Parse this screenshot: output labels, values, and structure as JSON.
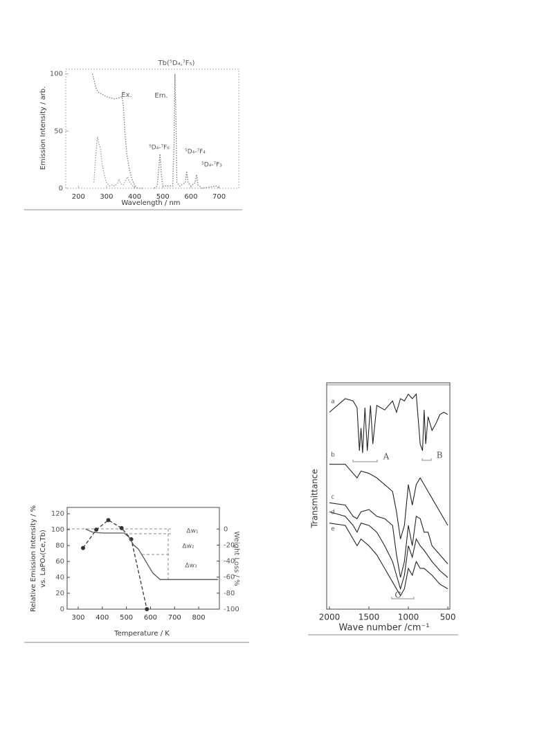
{
  "chart_data": [
    {
      "type": "line",
      "title": "Tb(⁵D₄,⁷F₅)",
      "x_label": "Wavelength / nm",
      "y_label": [
        "Emission Intensity / arb."
      ],
      "xlim": [
        155,
        770
      ],
      "ylim": [
        0,
        104
      ],
      "xticks": [
        200,
        300,
        400,
        500,
        600,
        700
      ],
      "yticks": [
        0,
        50,
        100
      ],
      "annotations": [
        "⁵D₄-⁷F₆",
        "⁵D₄-⁷F₄",
        "⁵D₄-⁷F₃"
      ],
      "series": [
        {
          "name": "Ex.",
          "color": "#777777",
          "line_style": "dotted",
          "x": [
            250,
            255,
            262,
            270,
            285,
            300,
            315,
            330,
            345,
            355,
            360,
            365,
            372,
            380,
            388,
            395,
            402,
            410,
            430
          ],
          "values": [
            100,
            95,
            88,
            84,
            82,
            80,
            79,
            78,
            79,
            80,
            72,
            50,
            30,
            18,
            10,
            5,
            2,
            0,
            0
          ]
        },
        {
          "name": "Em.",
          "color": "#777777",
          "line_style": "dotted",
          "x": [
            470,
            480,
            485,
            490,
            495,
            500,
            535,
            540,
            543,
            547,
            550,
            560,
            580,
            585,
            590,
            600,
            615,
            620,
            625,
            640,
            690,
            700
          ],
          "values": [
            0,
            2,
            15,
            30,
            12,
            2,
            2,
            40,
            100,
            60,
            5,
            2,
            5,
            15,
            5,
            2,
            5,
            12,
            3,
            0,
            2,
            0
          ]
        },
        {
          "color": "#999999",
          "line_style": "dotted",
          "x": [
            255,
            262,
            268,
            272,
            278,
            285,
            292,
            300,
            310,
            320,
            330,
            340,
            345,
            350,
            360,
            370,
            375,
            380,
            390,
            400
          ],
          "values": [
            5,
            30,
            45,
            40,
            35,
            20,
            12,
            5,
            2,
            3,
            2,
            5,
            8,
            4,
            3,
            8,
            10,
            6,
            3,
            0
          ]
        }
      ]
    },
    {
      "type": "line",
      "x_label": "Temperature / K",
      "y_label": [
        "Relative Emission Intensity / %",
        "vs. LaPO₄(Ce,Tb)"
      ],
      "y2_label": "Weight Loss / %",
      "xlim": [
        254,
        886
      ],
      "ylim": [
        0,
        128
      ],
      "y2lim": [
        -100,
        27
      ],
      "xticks": [
        300,
        400,
        500,
        600,
        700,
        800
      ],
      "yticks": [
        0,
        20,
        40,
        60,
        80,
        100,
        120
      ],
      "y2ticks": [
        0,
        -20,
        -40,
        -60,
        -80,
        -100
      ],
      "annotations": [
        "Δw₁",
        "Δw₂",
        "Δw₃"
      ],
      "series": [
        {
          "color": "#333333",
          "line_style": "dashed",
          "marker": "circle",
          "x": [
            320,
            375,
            425,
            480,
            520,
            585
          ],
          "values": [
            77,
            100,
            112,
            102,
            88,
            0
          ]
        },
        {
          "color": "#555555",
          "line_style": "solid",
          "axis": "y2",
          "x": [
            330,
            360,
            400,
            450,
            490,
            510,
            530,
            550,
            580,
            610,
            640,
            700,
            800,
            880
          ],
          "values": [
            0,
            -4,
            -5,
            -5,
            -5,
            -10,
            -20,
            -25,
            -40,
            -55,
            -63,
            -63,
            -63,
            -63
          ]
        }
      ]
    },
    {
      "type": "line",
      "x_label": "Wave number /cm⁻¹",
      "y_label": [
        "Transmittance"
      ],
      "xlim": [
        2035,
        474
      ],
      "ylim": [
        0,
        100
      ],
      "xticks": [
        2000,
        1500,
        1000,
        500
      ],
      "annotations": [
        "A",
        "B",
        "C"
      ],
      "series": [
        {
          "name": "a",
          "color": "#222222",
          "line_style": "solid",
          "x": [
            2000,
            1900,
            1800,
            1700,
            1650,
            1620,
            1600,
            1580,
            1550,
            1520,
            1480,
            1450,
            1400,
            1300,
            1200,
            1150,
            1100,
            1050,
            1000,
            950,
            900,
            850,
            820,
            800,
            780,
            750,
            700,
            650,
            600,
            550,
            500
          ],
          "values": [
            87,
            90,
            93,
            92,
            89,
            70,
            80,
            69,
            89,
            70,
            90,
            73,
            90,
            88,
            92,
            87,
            93,
            92,
            95,
            93,
            95,
            73,
            70,
            88,
            73,
            85,
            79,
            82,
            86,
            87,
            86
          ]
        },
        {
          "name": "b",
          "color": "#222222",
          "line_style": "solid",
          "x": [
            2000,
            1800,
            1700,
            1650,
            1600,
            1500,
            1400,
            1300,
            1200,
            1150,
            1100,
            1050,
            1000,
            950,
            900,
            850,
            800,
            750,
            700,
            600,
            500
          ],
          "values": [
            64,
            64,
            60,
            58,
            61,
            60,
            58,
            55,
            52,
            43,
            31,
            37,
            55,
            46,
            55,
            58,
            55,
            52,
            49,
            43,
            37
          ]
        },
        {
          "name": "c",
          "color": "#222222",
          "line_style": "solid",
          "x": [
            2000,
            1800,
            1700,
            1650,
            1600,
            1500,
            1400,
            1300,
            1200,
            1150,
            1100,
            1050,
            1000,
            950,
            900,
            850,
            800,
            750,
            700,
            600,
            500
          ],
          "values": [
            47,
            46,
            41,
            40,
            43,
            44,
            41,
            40,
            37,
            24,
            14,
            21,
            37,
            28,
            41,
            40,
            34,
            34,
            28,
            24,
            20
          ]
        },
        {
          "name": "d",
          "color": "#222222",
          "line_style": "solid",
          "x": [
            2000,
            1800,
            1700,
            1650,
            1600,
            1500,
            1400,
            1300,
            1200,
            1150,
            1100,
            1050,
            1000,
            950,
            900,
            850,
            800,
            700,
            600,
            500
          ],
          "values": [
            43,
            41,
            37,
            34,
            38,
            37,
            34,
            28,
            21,
            15,
            9,
            15,
            28,
            23,
            31,
            28,
            26,
            21,
            17,
            14
          ]
        },
        {
          "name": "e",
          "color": "#222222",
          "line_style": "solid",
          "x": [
            2000,
            1800,
            1700,
            1650,
            1600,
            1500,
            1400,
            1300,
            1200,
            1100,
            1050,
            1000,
            950,
            900,
            850,
            800,
            700,
            600,
            500
          ],
          "values": [
            38,
            37,
            31,
            28,
            31,
            28,
            24,
            18,
            12,
            6,
            9,
            18,
            15,
            21,
            18,
            18,
            15,
            11,
            9
          ]
        }
      ]
    }
  ]
}
